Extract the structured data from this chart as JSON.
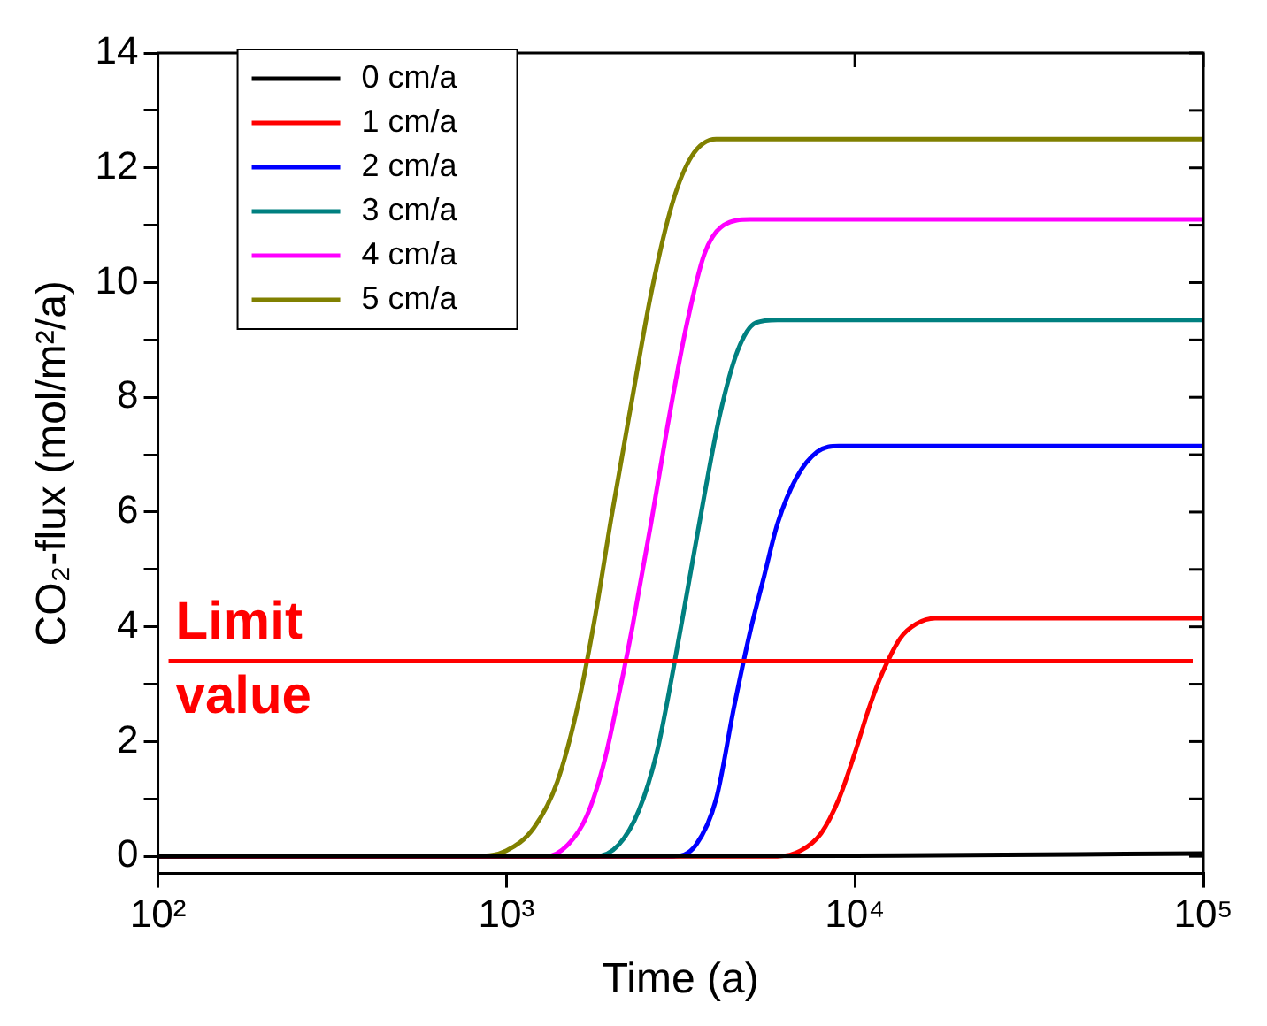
{
  "chart_data": {
    "type": "line",
    "xlabel": "Time (a)",
    "ylabel": "CO₂-flux (mol/m²/a)",
    "log": "x",
    "xlim": [
      100,
      100000
    ],
    "xticks": [
      {
        "value": 100,
        "label": "10²"
      },
      {
        "value": 1000,
        "label": "10³"
      },
      {
        "value": 10000,
        "label": "10⁴"
      },
      {
        "value": 100000,
        "label": "10⁵"
      }
    ],
    "ylim": [
      -0.3,
      14
    ],
    "yticks": [
      0,
      {
        "value": 1,
        "label": null
      },
      2,
      {
        "value": 3,
        "label": null
      },
      4,
      {
        "value": 5,
        "label": null
      },
      6,
      {
        "value": 7,
        "label": null
      },
      8,
      {
        "value": 9,
        "label": null
      },
      10,
      {
        "value": 11,
        "label": null
      },
      12,
      {
        "value": 13,
        "label": null
      },
      14
    ],
    "grid": false,
    "legend": "top left",
    "marker": "none",
    "line_style": "solid",
    "series": [
      {
        "name": "0 cm/a",
        "color": "#000000",
        "x": [
          100,
          10000,
          100000
        ],
        "values": [
          0,
          0.01,
          0.05
        ]
      },
      {
        "name": "1 cm/a",
        "color": "#ff0000",
        "x": [
          100,
          6000,
          7000,
          8000,
          9000,
          10000,
          11000,
          12000,
          13500,
          15000,
          17000,
          100000
        ],
        "values": [
          0,
          0,
          0.1,
          0.4,
          1.0,
          1.8,
          2.6,
          3.2,
          3.8,
          4.05,
          4.15,
          4.15
        ]
      },
      {
        "name": "2 cm/a",
        "color": "#0000ff",
        "x": [
          100,
          3000,
          3500,
          4000,
          4500,
          5000,
          5500,
          6000,
          6800,
          7800,
          9000,
          100000
        ],
        "values": [
          0,
          0,
          0.2,
          1.0,
          2.6,
          3.9,
          4.9,
          5.8,
          6.6,
          7.05,
          7.15,
          7.15
        ]
      },
      {
        "name": "3 cm/a",
        "color": "#008080",
        "x": [
          100,
          1800,
          2100,
          2400,
          2700,
          3000,
          3300,
          3700,
          4100,
          4600,
          5200,
          6000,
          100000
        ],
        "values": [
          0,
          0,
          0.2,
          0.8,
          1.8,
          3.2,
          4.6,
          6.3,
          7.7,
          8.8,
          9.3,
          9.35,
          9.35
        ]
      },
      {
        "name": "4 cm/a",
        "color": "#ff00ff",
        "x": [
          100,
          1300,
          1500,
          1700,
          1900,
          2100,
          2300,
          2600,
          2900,
          3300,
          3700,
          4200,
          5000,
          100000
        ],
        "values": [
          0,
          0,
          0.2,
          0.7,
          1.6,
          2.8,
          4.0,
          5.8,
          7.5,
          9.3,
          10.5,
          11.0,
          11.1,
          11.1
        ]
      },
      {
        "name": "5 cm/a",
        "color": "#808000",
        "x": [
          100,
          800,
          1000,
          1200,
          1400,
          1600,
          1800,
          2000,
          2300,
          2600,
          3000,
          3400,
          4000,
          100000
        ],
        "values": [
          0,
          0,
          0.1,
          0.5,
          1.3,
          2.6,
          4.2,
          5.9,
          8.0,
          9.8,
          11.4,
          12.2,
          12.5,
          12.5
        ]
      }
    ],
    "ref_lines": [
      {
        "axis": "y",
        "value": 3.4,
        "label": "Limit value",
        "color": "#ff0000"
      }
    ]
  }
}
